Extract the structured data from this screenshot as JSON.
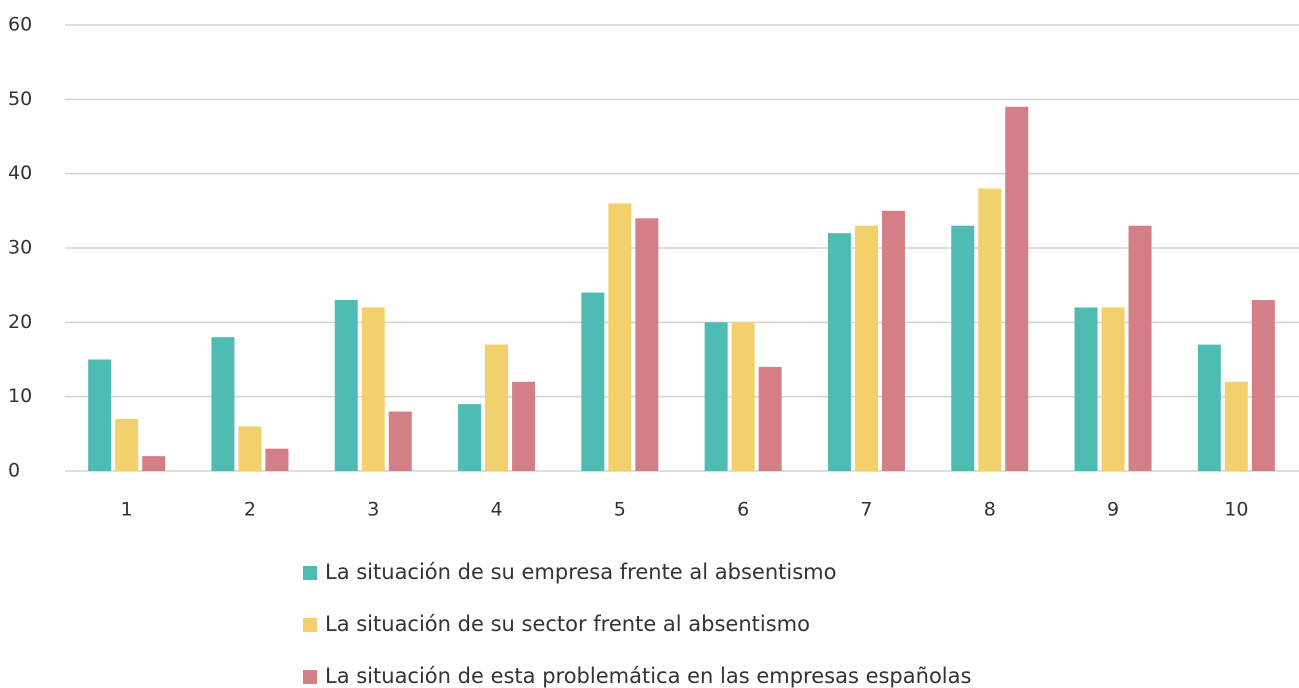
{
  "chart_data": {
    "type": "bar",
    "categories": [
      "1",
      "2",
      "3",
      "4",
      "5",
      "6",
      "7",
      "8",
      "9",
      "10"
    ],
    "series": [
      {
        "name": "La situación de su empresa frente al absentismo",
        "color": "#4fbcb3",
        "values": [
          15,
          18,
          23,
          9,
          24,
          20,
          32,
          33,
          22,
          17
        ]
      },
      {
        "name": "La situación de su sector frente al absentismo",
        "color": "#f2d06b",
        "values": [
          7,
          6,
          22,
          17,
          36,
          20,
          33,
          38,
          22,
          12
        ]
      },
      {
        "name": "La situación de esta problemática en las empresas españolas",
        "color": "#d47e86",
        "values": [
          2,
          3,
          8,
          12,
          34,
          14,
          35,
          49,
          33,
          23
        ]
      }
    ],
    "ylim": [
      0,
      60
    ],
    "yticks": [
      0,
      10,
      20,
      30,
      40,
      50,
      60
    ],
    "grid": true,
    "legend": "bottom"
  }
}
